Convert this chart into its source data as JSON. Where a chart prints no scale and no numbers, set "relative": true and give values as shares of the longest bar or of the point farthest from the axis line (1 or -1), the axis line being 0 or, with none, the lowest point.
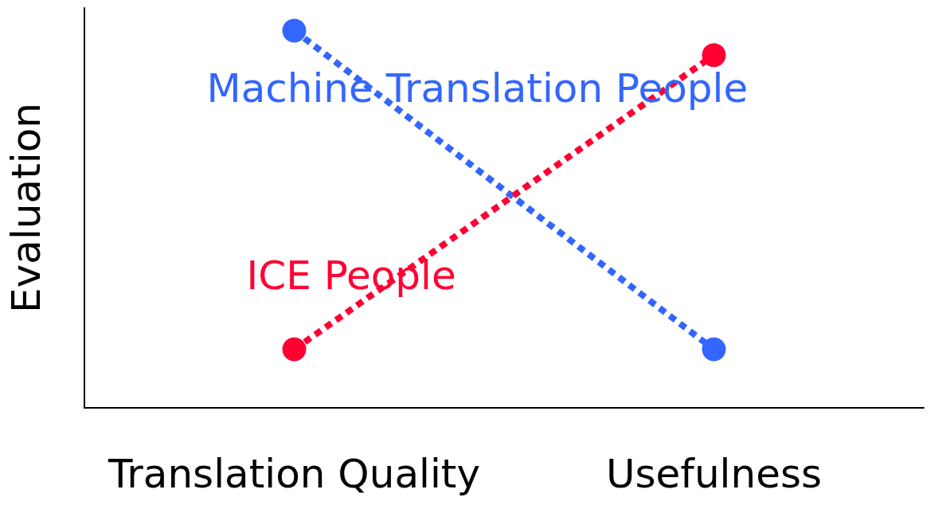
{
  "chart_data": {
    "type": "line",
    "ylabel": "Evaluation",
    "categories": [
      "Translation Quality",
      "Usefulness"
    ],
    "relative": true,
    "marker": "circle",
    "line_style": "dotted",
    "grid": false,
    "legend": false,
    "series": [
      {
        "name": "Machine Translation People",
        "color": "#3366ff",
        "values": [
          1,
          0.155
        ]
      },
      {
        "name": "ICE People",
        "color": "#ff0033",
        "values": [
          0.155,
          0.935
        ]
      }
    ]
  }
}
